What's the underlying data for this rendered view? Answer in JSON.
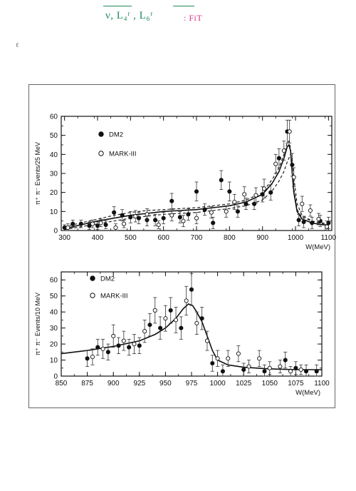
{
  "annotation": {
    "text_a": "ν, L₄ʳ , L₆ʳ",
    "text_b": ": FiT"
  },
  "chart_data": [
    {
      "type": "scatter",
      "ylabel": "π⁺ π⁻ Events/25 MeV",
      "xlabel": "W(MeV)",
      "xlim": [
        290,
        1110
      ],
      "ylim": [
        0,
        60
      ],
      "xticks": [
        300,
        400,
        500,
        600,
        700,
        800,
        900,
        1000,
        1100
      ],
      "yticks": [
        0,
        10,
        20,
        30,
        40,
        50,
        60
      ],
      "legend": [
        "DM2",
        "MARK-III"
      ],
      "series": [
        {
          "name": "DM2",
          "marker": "filled",
          "points": [
            [
              300,
              1.5,
              1.5
            ],
            [
              325,
              3.5,
              2
            ],
            [
              350,
              3.5,
              2
            ],
            [
              375,
              2.5,
              2
            ],
            [
              400,
              2.5,
              2
            ],
            [
              425,
              3,
              2
            ],
            [
              450,
              9.5,
              3
            ],
            [
              475,
              8,
              3
            ],
            [
              500,
              7,
              3
            ],
            [
              525,
              6.5,
              3
            ],
            [
              550,
              5.5,
              3
            ],
            [
              575,
              5.5,
              3
            ],
            [
              600,
              6.5,
              3
            ],
            [
              625,
              15.5,
              4
            ],
            [
              650,
              7,
              3
            ],
            [
              675,
              8.5,
              3
            ],
            [
              700,
              20.5,
              5
            ],
            [
              725,
              11,
              3
            ],
            [
              750,
              4,
              3
            ],
            [
              775,
              26.5,
              5
            ],
            [
              800,
              20.5,
              5
            ],
            [
              825,
              10,
              3
            ],
            [
              850,
              14,
              3
            ],
            [
              875,
              14,
              3
            ],
            [
              900,
              19,
              4
            ],
            [
              925,
              20,
              4
            ],
            [
              950,
              38,
              5
            ],
            [
              975,
              52,
              6
            ],
            [
              990,
              34.5,
              6
            ],
            [
              1010,
              5.5,
              3
            ],
            [
              1025,
              4.5,
              3
            ],
            [
              1050,
              4,
              3
            ],
            [
              1075,
              5,
              3
            ],
            [
              1100,
              4,
              3
            ]
          ]
        },
        {
          "name": "MARK-III",
          "marker": "open",
          "points": [
            [
              310,
              1.5,
              2
            ],
            [
              385,
              3.5,
              2
            ],
            [
              410,
              4,
              2
            ],
            [
              455,
              1.5,
              2
            ],
            [
              480,
              3.5,
              2
            ],
            [
              515,
              7.5,
              3
            ],
            [
              550,
              8.5,
              3
            ],
            [
              585,
              3,
              2
            ],
            [
              625,
              8,
              3
            ],
            [
              660,
              5,
              3
            ],
            [
              700,
              6.5,
              3
            ],
            [
              745,
              9.5,
              3
            ],
            [
              790,
              10,
              3
            ],
            [
              815,
              15,
              4
            ],
            [
              845,
              19,
              4
            ],
            [
              880,
              18.5,
              4
            ],
            [
              905,
              22,
              5
            ],
            [
              940,
              35,
              5
            ],
            [
              965,
              42,
              5
            ],
            [
              982,
              52,
              6
            ],
            [
              995,
              28,
              5
            ],
            [
              1020,
              14,
              4
            ],
            [
              1045,
              10.5,
              3
            ],
            [
              1070,
              6,
              3
            ],
            [
              1095,
              2,
              3
            ]
          ]
        }
      ],
      "curves": [
        {
          "style": "solid",
          "points": [
            [
              300,
              1
            ],
            [
              350,
              3
            ],
            [
              400,
              5
            ],
            [
              450,
              6.5
            ],
            [
              500,
              8
            ],
            [
              550,
              9
            ],
            [
              600,
              10
            ],
            [
              650,
              10.5
            ],
            [
              700,
              11
            ],
            [
              750,
              12
            ],
            [
              800,
              13
            ],
            [
              850,
              15
            ],
            [
              900,
              19
            ],
            [
              930,
              25
            ],
            [
              950,
              31
            ],
            [
              965,
              38
            ],
            [
              975,
              44
            ],
            [
              980,
              45
            ],
            [
              985,
              42
            ],
            [
              990,
              30
            ],
            [
              995,
              20
            ],
            [
              1005,
              10
            ],
            [
              1020,
              6
            ],
            [
              1050,
              4
            ],
            [
              1080,
              3
            ],
            [
              1100,
              3
            ]
          ]
        },
        {
          "style": "dashed",
          "points": [
            [
              300,
              2
            ],
            [
              350,
              4
            ],
            [
              400,
              6
            ],
            [
              450,
              8
            ],
            [
              500,
              9.5
            ],
            [
              550,
              10.5
            ],
            [
              600,
              11
            ],
            [
              650,
              11.5
            ],
            [
              700,
              12
            ],
            [
              750,
              13
            ],
            [
              800,
              14
            ],
            [
              850,
              16
            ],
            [
              900,
              20
            ],
            [
              930,
              27
            ],
            [
              950,
              33
            ],
            [
              965,
              40
            ],
            [
              975,
              46
            ],
            [
              980,
              47
            ],
            [
              985,
              43
            ],
            [
              990,
              32
            ],
            [
              995,
              22
            ],
            [
              1005,
              11
            ],
            [
              1020,
              7
            ],
            [
              1050,
              5
            ],
            [
              1080,
              4
            ],
            [
              1100,
              3.5
            ]
          ]
        },
        {
          "style": "dashed",
          "points": [
            [
              300,
              0.5
            ],
            [
              350,
              2
            ],
            [
              400,
              3.5
            ],
            [
              450,
              5
            ],
            [
              500,
              6.5
            ],
            [
              550,
              7.5
            ],
            [
              600,
              8.5
            ],
            [
              650,
              9
            ],
            [
              700,
              9.5
            ],
            [
              750,
              10.5
            ],
            [
              800,
              11.5
            ],
            [
              850,
              13
            ],
            [
              900,
              16
            ],
            [
              930,
              21
            ],
            [
              950,
              26
            ],
            [
              965,
              31
            ],
            [
              975,
              36
            ],
            [
              985,
              40
            ],
            [
              990,
              38
            ],
            [
              995,
              28
            ],
            [
              1005,
              14
            ],
            [
              1020,
              8
            ],
            [
              1050,
              5
            ],
            [
              1080,
              3.5
            ],
            [
              1100,
              3
            ]
          ]
        }
      ]
    },
    {
      "type": "scatter",
      "ylabel": "π⁺ π⁻ Events/10 MeV",
      "xlabel": "W(MeV)",
      "xlim": [
        850,
        1100
      ],
      "ylim": [
        0,
        65
      ],
      "xticks": [
        850,
        875,
        900,
        925,
        950,
        975,
        1000,
        1025,
        1050,
        1075,
        1100
      ],
      "yticks": [
        0,
        10,
        20,
        30,
        40,
        50,
        60
      ],
      "legend": [
        "DM2",
        "MARK-III"
      ],
      "series": [
        {
          "name": "DM2",
          "marker": "filled",
          "points": [
            [
              875,
              11,
              5
            ],
            [
              885,
              18,
              5
            ],
            [
              895,
              15,
              5
            ],
            [
              905,
              19,
              5
            ],
            [
              915,
              18,
              5
            ],
            [
              925,
              19,
              5
            ],
            [
              935,
              32,
              7
            ],
            [
              945,
              30,
              7
            ],
            [
              955,
              41,
              8
            ],
            [
              965,
              30,
              7
            ],
            [
              975,
              54,
              10
            ],
            [
              985,
              36,
              7
            ],
            [
              995,
              8,
              5
            ],
            [
              1005,
              3,
              4
            ],
            [
              1025,
              4,
              4
            ],
            [
              1045,
              3,
              4
            ],
            [
              1065,
              10,
              5
            ],
            [
              1075,
              5,
              4
            ],
            [
              1085,
              3,
              4
            ],
            [
              1095,
              3,
              4
            ]
          ]
        },
        {
          "name": "MARK-III",
          "marker": "open",
          "points": [
            [
              880,
              12,
              5
            ],
            [
              890,
              17,
              6
            ],
            [
              900,
              25,
              7
            ],
            [
              910,
              22,
              6
            ],
            [
              920,
              20,
              6
            ],
            [
              930,
              28,
              7
            ],
            [
              940,
              41,
              8
            ],
            [
              950,
              36,
              8
            ],
            [
              960,
              35,
              8
            ],
            [
              970,
              47,
              9
            ],
            [
              980,
              33,
              7
            ],
            [
              990,
              22,
              6
            ],
            [
              1000,
              11,
              5
            ],
            [
              1010,
              11,
              5
            ],
            [
              1020,
              14,
              5
            ],
            [
              1030,
              6,
              4
            ],
            [
              1040,
              11,
              5
            ],
            [
              1050,
              5,
              4
            ],
            [
              1060,
              6,
              4
            ],
            [
              1070,
              3,
              3
            ],
            [
              1080,
              4,
              3
            ]
          ]
        }
      ],
      "curves": [
        {
          "style": "solid",
          "points": [
            [
              850,
              14
            ],
            [
              875,
              16
            ],
            [
              900,
              18.5
            ],
            [
              925,
              22
            ],
            [
              940,
              26
            ],
            [
              950,
              30
            ],
            [
              960,
              36
            ],
            [
              967,
              42
            ],
            [
              972,
              45
            ],
            [
              976,
              44
            ],
            [
              980,
              40
            ],
            [
              985,
              34
            ],
            [
              990,
              25
            ],
            [
              995,
              16
            ],
            [
              1000,
              10
            ],
            [
              1010,
              7
            ],
            [
              1025,
              5.5
            ],
            [
              1050,
              4.5
            ],
            [
              1075,
              4
            ],
            [
              1100,
              4
            ]
          ]
        }
      ]
    }
  ]
}
